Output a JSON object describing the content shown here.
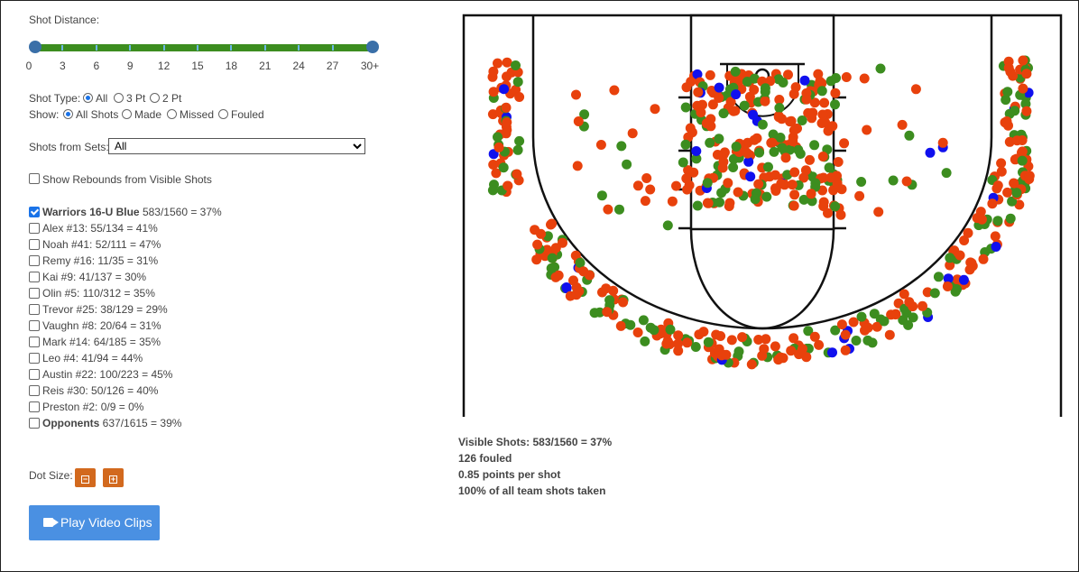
{
  "controls": {
    "shot_distance_label": "Shot Distance:",
    "distance_ticks": [
      "0",
      "3",
      "6",
      "9",
      "12",
      "15",
      "18",
      "21",
      "24",
      "27",
      "30+"
    ],
    "distance_range": {
      "min": "0",
      "max": "30+"
    },
    "shot_type": {
      "label": "Shot Type:",
      "options": [
        "All",
        "3 Pt",
        "2 Pt"
      ],
      "selected": "All"
    },
    "show": {
      "label": "Show:",
      "options": [
        "All Shots",
        "Made",
        "Missed",
        "Fouled"
      ],
      "selected": "All Shots"
    },
    "sets": {
      "label": "Shots from Sets:",
      "value": "All"
    },
    "rebounds_label": "Show Rebounds from Visible Shots",
    "rebounds_checked": false,
    "dot_size_label": "Dot Size:",
    "dot_minus": "−",
    "dot_plus": "+",
    "video_button": "Play Video Clips"
  },
  "players": [
    {
      "name": "Warriors 16-U Blue",
      "stats": "583/1560 = 37%",
      "checked": true,
      "team": true
    },
    {
      "name": "Alex #13:",
      "stats": "55/134 = 41%",
      "checked": false
    },
    {
      "name": "Noah #41:",
      "stats": "52/111 = 47%",
      "checked": false
    },
    {
      "name": "Remy #16:",
      "stats": "11/35 = 31%",
      "checked": false
    },
    {
      "name": "Kai #9:",
      "stats": "41/137 = 30%",
      "checked": false
    },
    {
      "name": "Olin #5:",
      "stats": "110/312 = 35%",
      "checked": false
    },
    {
      "name": "Trevor #25:",
      "stats": "38/129 = 29%",
      "checked": false
    },
    {
      "name": "Vaughn #8:",
      "stats": "20/64 = 31%",
      "checked": false
    },
    {
      "name": "Mark #14:",
      "stats": "64/185 = 35%",
      "checked": false
    },
    {
      "name": "Leo #4:",
      "stats": "41/94 = 44%",
      "checked": false
    },
    {
      "name": "Austin #22:",
      "stats": "100/223 = 45%",
      "checked": false
    },
    {
      "name": "Reis #30:",
      "stats": "50/126 = 40%",
      "checked": false
    },
    {
      "name": "Preston #2:",
      "stats": "0/9 = 0%",
      "checked": false
    },
    {
      "name": "Opponents",
      "stats": "637/1615 = 39%",
      "checked": false,
      "team": true
    }
  ],
  "stats": {
    "visible_shots": "Visible Shots: 583/1560 = 37%",
    "fouled": "126 fouled",
    "points_per_shot": "0.85 points per shot",
    "team_share": "100% of all team shots taken"
  },
  "legend_colors": {
    "made": "#3c8d1f",
    "missed": "#e8410c",
    "fouled": "#1010ee"
  }
}
